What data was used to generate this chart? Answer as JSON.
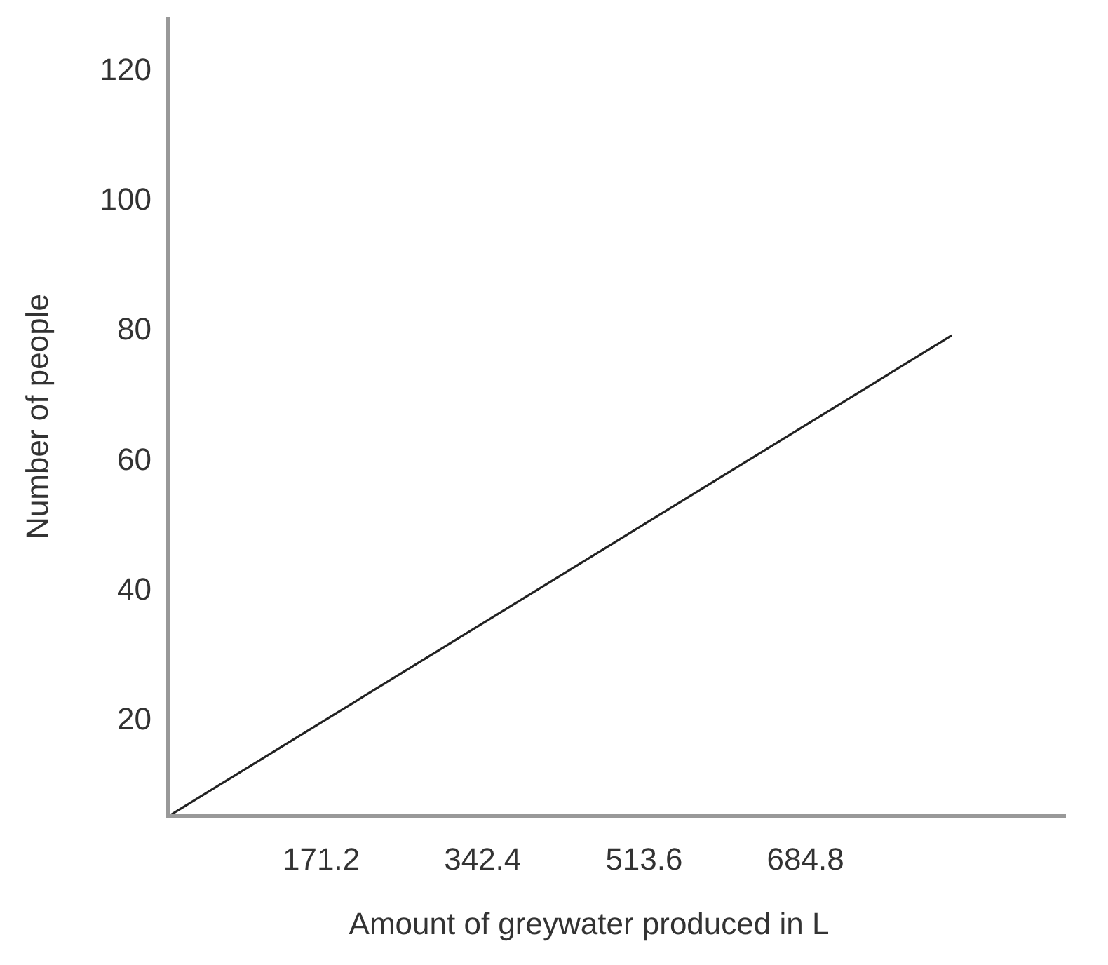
{
  "chart_data": {
    "type": "line",
    "xlabel": "Amount of greywater produced in L",
    "ylabel": "Number of people",
    "x": [
      9,
      840
    ],
    "series": [
      {
        "color": "#222222",
        "values": [
          5,
          79
        ]
      }
    ],
    "xlim": [
      9,
      961
    ],
    "ylim": [
      5,
      128
    ],
    "xticks": [
      171.2,
      342.4,
      513.6,
      684.8
    ],
    "yticks": [
      20,
      40,
      60,
      80,
      100,
      120
    ],
    "grid": false,
    "marker": "none",
    "line_style": "solid"
  }
}
